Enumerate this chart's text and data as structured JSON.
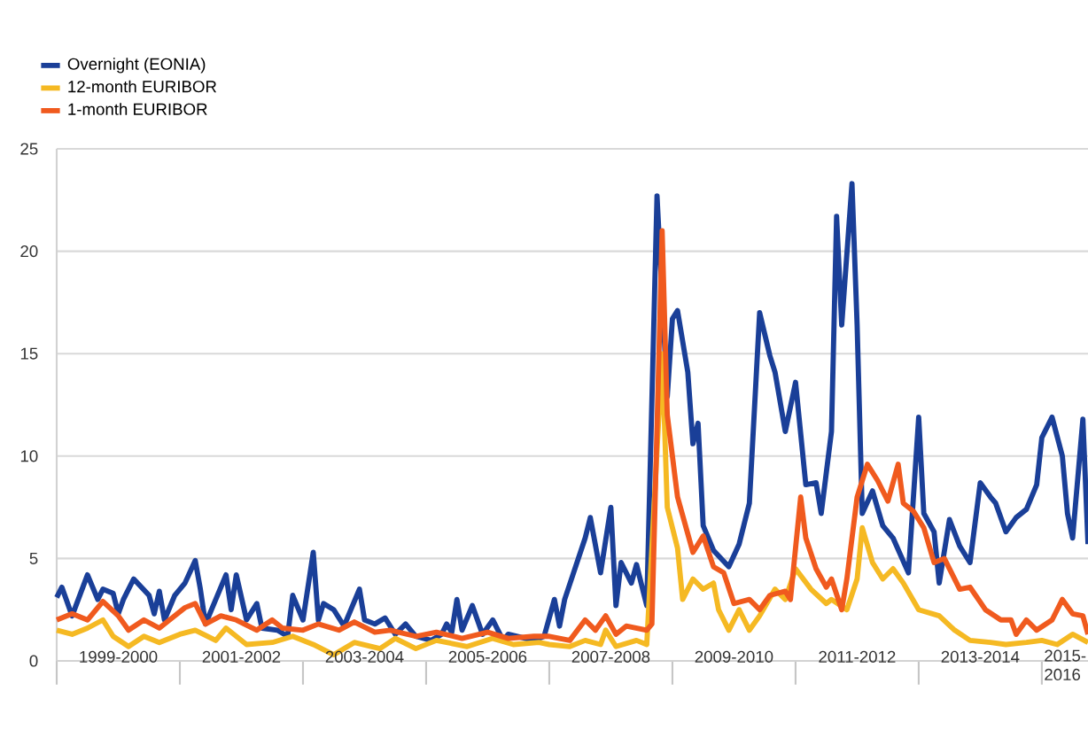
{
  "chart_data": {
    "type": "line",
    "xlim": [
      "1999-01",
      "2015-10"
    ],
    "ylim": [
      0,
      25
    ],
    "yticks": [
      0,
      5,
      10,
      15,
      20,
      25
    ],
    "grid": "y",
    "legend": "top left",
    "line_style": "solid",
    "xticks": [
      {
        "value": "1999-01",
        "label": null
      },
      {
        "value": "2000-01",
        "label": "1999-2000"
      },
      {
        "value": "2001-01",
        "label": null
      },
      {
        "value": "2002-01",
        "label": "2001-2002"
      },
      {
        "value": "2003-01",
        "label": null
      },
      {
        "value": "2004-01",
        "label": "2003-2004"
      },
      {
        "value": "2005-01",
        "label": null
      },
      {
        "value": "2006-01",
        "label": "2005-2006"
      },
      {
        "value": "2007-01",
        "label": null
      },
      {
        "value": "2008-01",
        "label": "2007-2008"
      },
      {
        "value": "2009-01",
        "label": null
      },
      {
        "value": "2010-01",
        "label": "2009-2010"
      },
      {
        "value": "2011-01",
        "label": null
      },
      {
        "value": "2012-01",
        "label": "2011-2012"
      },
      {
        "value": "2013-01",
        "label": null
      },
      {
        "value": "2014-01",
        "label": "2013-2014"
      },
      {
        "value": "2015-01",
        "label": null
      },
      {
        "value": "2015-05",
        "label": "2015-2016"
      }
    ],
    "series": [
      {
        "name": "Overnight (EONIA)",
        "color": "#1a3f98",
        "x": [
          "1999-01",
          "1999-02",
          "1999-04",
          "1999-07",
          "1999-09",
          "1999-10",
          "1999-12",
          "2000-01",
          "2000-02",
          "2000-04",
          "2000-07",
          "2000-08",
          "2000-09",
          "2000-10",
          "2000-12",
          "2001-02",
          "2001-04",
          "2001-05",
          "2001-06",
          "2001-08",
          "2001-10",
          "2001-11",
          "2001-12",
          "2002-02",
          "2002-04",
          "2002-05",
          "2002-08",
          "2002-10",
          "2002-11",
          "2003-01",
          "2003-03",
          "2003-04",
          "2003-05",
          "2003-07",
          "2003-09",
          "2003-12",
          "2004-01",
          "2004-03",
          "2004-05",
          "2004-07",
          "2004-09",
          "2004-11",
          "2005-02",
          "2005-04",
          "2005-05",
          "2005-06",
          "2005-07",
          "2005-08",
          "2005-10",
          "2005-12",
          "2006-02",
          "2006-04",
          "2006-05",
          "2006-10",
          "2006-12",
          "2007-02",
          "2007-03",
          "2007-04",
          "2007-08",
          "2007-09",
          "2007-11",
          "2008-01",
          "2008-02",
          "2008-03",
          "2008-05",
          "2008-06",
          "2008-08",
          "2008-10",
          "2008-12",
          "2009-01",
          "2009-02",
          "2009-04",
          "2009-05",
          "2009-06",
          "2009-07",
          "2009-09",
          "2009-12",
          "2010-02",
          "2010-04",
          "2010-06",
          "2010-08",
          "2010-09",
          "2010-11",
          "2011-01",
          "2011-03",
          "2011-05",
          "2011-06",
          "2011-08",
          "2011-09",
          "2011-10",
          "2011-12",
          "2012-01",
          "2012-02",
          "2012-04",
          "2012-06",
          "2012-08",
          "2012-11",
          "2013-01",
          "2013-02",
          "2013-04",
          "2013-05",
          "2013-07",
          "2013-09",
          "2013-11",
          "2014-01",
          "2014-03",
          "2014-04",
          "2014-06",
          "2014-08",
          "2014-10",
          "2014-12",
          "2015-01",
          "2015-03",
          "2015-05",
          "2015-06",
          "2015-07",
          "2015-09",
          "2015-10"
        ],
        "values": [
          3.1,
          3.6,
          2.2,
          4.2,
          3.0,
          3.5,
          3.3,
          2.3,
          3.0,
          4.0,
          3.2,
          2.3,
          3.4,
          2.0,
          3.2,
          3.8,
          4.9,
          3.5,
          1.8,
          3.0,
          4.2,
          2.5,
          4.2,
          2.0,
          2.8,
          1.6,
          1.5,
          1.2,
          3.2,
          2.0,
          5.3,
          2.0,
          2.8,
          2.5,
          1.7,
          3.5,
          2.0,
          1.8,
          2.1,
          1.3,
          1.8,
          1.2,
          1.0,
          1.3,
          1.8,
          1.4,
          3.0,
          1.5,
          2.7,
          1.3,
          2.0,
          1.0,
          1.3,
          1.0,
          1.2,
          3.0,
          1.7,
          3.0,
          6.0,
          7.0,
          4.3,
          7.5,
          2.7,
          4.8,
          3.8,
          4.7,
          2.7,
          22.7,
          12.9,
          16.7,
          17.1,
          14.1,
          10.6,
          11.6,
          6.6,
          5.4,
          4.6,
          5.7,
          7.7,
          17.0,
          14.9,
          14.1,
          11.2,
          13.6,
          8.6,
          8.7,
          7.2,
          11.2,
          21.7,
          16.4,
          23.3,
          16.4,
          7.2,
          8.3,
          6.6,
          6.0,
          4.3,
          11.9,
          7.2,
          6.3,
          3.8,
          6.9,
          5.6,
          4.8,
          8.7,
          8.0,
          7.7,
          6.3,
          7.0,
          7.4,
          8.6,
          10.9,
          11.9,
          10.0,
          7.2,
          6.0,
          11.8,
          5.7
        ]
      },
      {
        "name": "12-month EURIBOR",
        "color": "#f5b923",
        "x": [
          "1999-01",
          "1999-04",
          "1999-07",
          "1999-10",
          "1999-12",
          "2000-03",
          "2000-06",
          "2000-09",
          "2001-01",
          "2001-04",
          "2001-08",
          "2001-10",
          "2002-02",
          "2002-07",
          "2002-11",
          "2003-03",
          "2003-07",
          "2003-11",
          "2004-04",
          "2004-07",
          "2004-11",
          "2005-03",
          "2005-09",
          "2006-02",
          "2006-06",
          "2006-11",
          "2007-01",
          "2007-05",
          "2007-08",
          "2007-11",
          "2007-12",
          "2008-02",
          "2008-06",
          "2008-08",
          "2008-11",
          "2008-12",
          "2009-02",
          "2009-03",
          "2009-05",
          "2009-07",
          "2009-09",
          "2009-10",
          "2009-12",
          "2010-02",
          "2010-04",
          "2010-06",
          "2010-09",
          "2010-11",
          "2011-01",
          "2011-04",
          "2011-07",
          "2011-08",
          "2011-11",
          "2012-01",
          "2012-02",
          "2012-04",
          "2012-06",
          "2012-08",
          "2012-10",
          "2013-01",
          "2013-05",
          "2013-08",
          "2013-11",
          "2014-03",
          "2014-06",
          "2014-10",
          "2015-01",
          "2015-04",
          "2015-07",
          "2015-10"
        ],
        "values": [
          1.5,
          1.3,
          1.6,
          2.0,
          1.2,
          0.7,
          1.2,
          0.9,
          1.3,
          1.5,
          1.0,
          1.6,
          0.8,
          0.9,
          1.2,
          0.8,
          0.3,
          0.9,
          0.6,
          1.1,
          0.6,
          1.0,
          0.7,
          1.1,
          0.8,
          0.9,
          0.8,
          0.7,
          1.0,
          0.8,
          1.5,
          0.7,
          1.0,
          0.8,
          15.0,
          7.5,
          5.5,
          3.0,
          4.0,
          3.5,
          3.8,
          2.5,
          1.5,
          2.5,
          1.5,
          2.2,
          3.5,
          3.0,
          4.5,
          3.5,
          2.8,
          3.0,
          2.5,
          4.0,
          6.5,
          4.8,
          4.0,
          4.5,
          3.8,
          2.5,
          2.2,
          1.5,
          1.0,
          0.9,
          0.8,
          0.9,
          1.0,
          0.8,
          1.3,
          0.9
        ]
      },
      {
        "name": "1-month EURIBOR",
        "color": "#f05a1e",
        "x": [
          "1999-01",
          "1999-04",
          "1999-07",
          "1999-10",
          "2000-01",
          "2000-03",
          "2000-06",
          "2000-09",
          "2000-11",
          "2001-02",
          "2001-04",
          "2001-06",
          "2001-09",
          "2001-12",
          "2002-04",
          "2002-07",
          "2002-09",
          "2003-01",
          "2003-04",
          "2003-08",
          "2003-11",
          "2004-03",
          "2004-06",
          "2004-11",
          "2005-03",
          "2005-08",
          "2006-01",
          "2006-05",
          "2006-10",
          "2007-01",
          "2007-05",
          "2007-08",
          "2007-10",
          "2007-12",
          "2008-02",
          "2008-04",
          "2008-08",
          "2008-09",
          "2008-11",
          "2008-12",
          "2009-02",
          "2009-04",
          "2009-05",
          "2009-07",
          "2009-09",
          "2009-11",
          "2010-01",
          "2010-04",
          "2010-06",
          "2010-08",
          "2010-11",
          "2010-12",
          "2011-02",
          "2011-03",
          "2011-05",
          "2011-07",
          "2011-08",
          "2011-10",
          "2011-11",
          "2012-01",
          "2012-03",
          "2012-05",
          "2012-07",
          "2012-09",
          "2012-10",
          "2012-12",
          "2013-02",
          "2013-04",
          "2013-06",
          "2013-09",
          "2013-11",
          "2014-02",
          "2014-05",
          "2014-07",
          "2014-08",
          "2014-10",
          "2014-12",
          "2015-03",
          "2015-05",
          "2015-07",
          "2015-09",
          "2015-10"
        ],
        "values": [
          2.0,
          2.3,
          2.0,
          2.9,
          2.2,
          1.5,
          2.0,
          1.6,
          2.0,
          2.6,
          2.8,
          1.8,
          2.2,
          2.0,
          1.5,
          2.0,
          1.6,
          1.5,
          1.8,
          1.5,
          1.9,
          1.4,
          1.5,
          1.2,
          1.4,
          1.1,
          1.4,
          1.1,
          1.2,
          1.2,
          1.0,
          2.0,
          1.5,
          2.2,
          1.3,
          1.7,
          1.5,
          1.8,
          21.0,
          12.0,
          8.0,
          6.2,
          5.3,
          6.1,
          4.6,
          4.3,
          2.8,
          3.0,
          2.5,
          3.2,
          3.4,
          3.0,
          8.0,
          6.0,
          4.5,
          3.6,
          4.0,
          2.5,
          4.0,
          8.0,
          9.6,
          8.8,
          7.8,
          9.6,
          7.7,
          7.3,
          6.5,
          4.8,
          5.0,
          3.5,
          3.6,
          2.5,
          2.0,
          2.0,
          1.3,
          2.0,
          1.5,
          2.0,
          3.0,
          2.3,
          2.2,
          1.3
        ]
      }
    ]
  }
}
